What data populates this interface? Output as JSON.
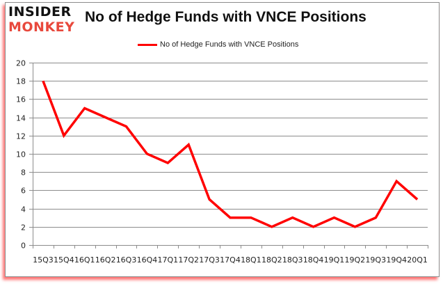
{
  "logo": {
    "line1": "INSIDER",
    "line2": "MONKEY"
  },
  "colors": {
    "series": "#ff0000",
    "grid": "#8c8c8c",
    "logo_accent": "#e8483c"
  },
  "chart_data": {
    "type": "line",
    "title": "No of Hedge Funds with VNCE Positions",
    "xlabel": "",
    "ylabel": "",
    "ylim": [
      0,
      20
    ],
    "yticks": [
      0,
      2,
      4,
      6,
      8,
      10,
      12,
      14,
      16,
      18,
      20
    ],
    "grid": true,
    "legend_position": "top",
    "categories": [
      "15Q3",
      "15Q4",
      "16Q1",
      "16Q2",
      "16Q3",
      "16Q4",
      "17Q1",
      "17Q2",
      "17Q3",
      "17Q4",
      "18Q1",
      "18Q2",
      "18Q3",
      "18Q4",
      "19Q1",
      "19Q2",
      "19Q3",
      "19Q4",
      "20Q1"
    ],
    "series": [
      {
        "name": "No of Hedge Funds with VNCE Positions",
        "values": [
          18,
          12,
          15,
          14,
          13,
          10,
          9,
          11,
          5,
          3,
          3,
          2,
          3,
          2,
          3,
          2,
          3,
          7,
          5
        ]
      }
    ]
  }
}
